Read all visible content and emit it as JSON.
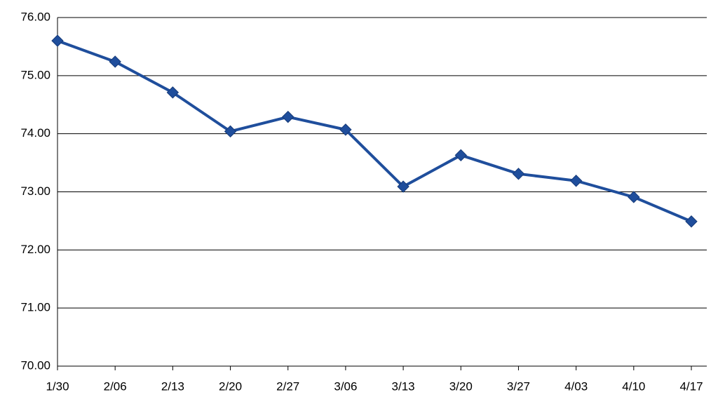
{
  "chart_data": {
    "type": "line",
    "categories": [
      "1/30",
      "2/06",
      "2/13",
      "2/20",
      "2/27",
      "3/06",
      "3/13",
      "3/20",
      "3/27",
      "4/03",
      "4/10",
      "4/17"
    ],
    "series": [
      {
        "color": "#1f4e9c",
        "values": [
          75.6,
          75.24,
          74.71,
          74.04,
          74.29,
          74.07,
          73.09,
          73.63,
          73.31,
          73.19,
          72.91,
          72.49
        ]
      }
    ],
    "ylim": [
      70,
      76
    ],
    "yticks": [
      {
        "value": 70,
        "label": "70.00"
      },
      {
        "value": 71,
        "label": "71.00"
      },
      {
        "value": 72,
        "label": "72.00"
      },
      {
        "value": 73,
        "label": "73.00"
      },
      {
        "value": 74,
        "label": "74.00"
      },
      {
        "value": 75,
        "label": "75.00"
      },
      {
        "value": 76,
        "label": "76.00"
      }
    ],
    "grid": true
  }
}
